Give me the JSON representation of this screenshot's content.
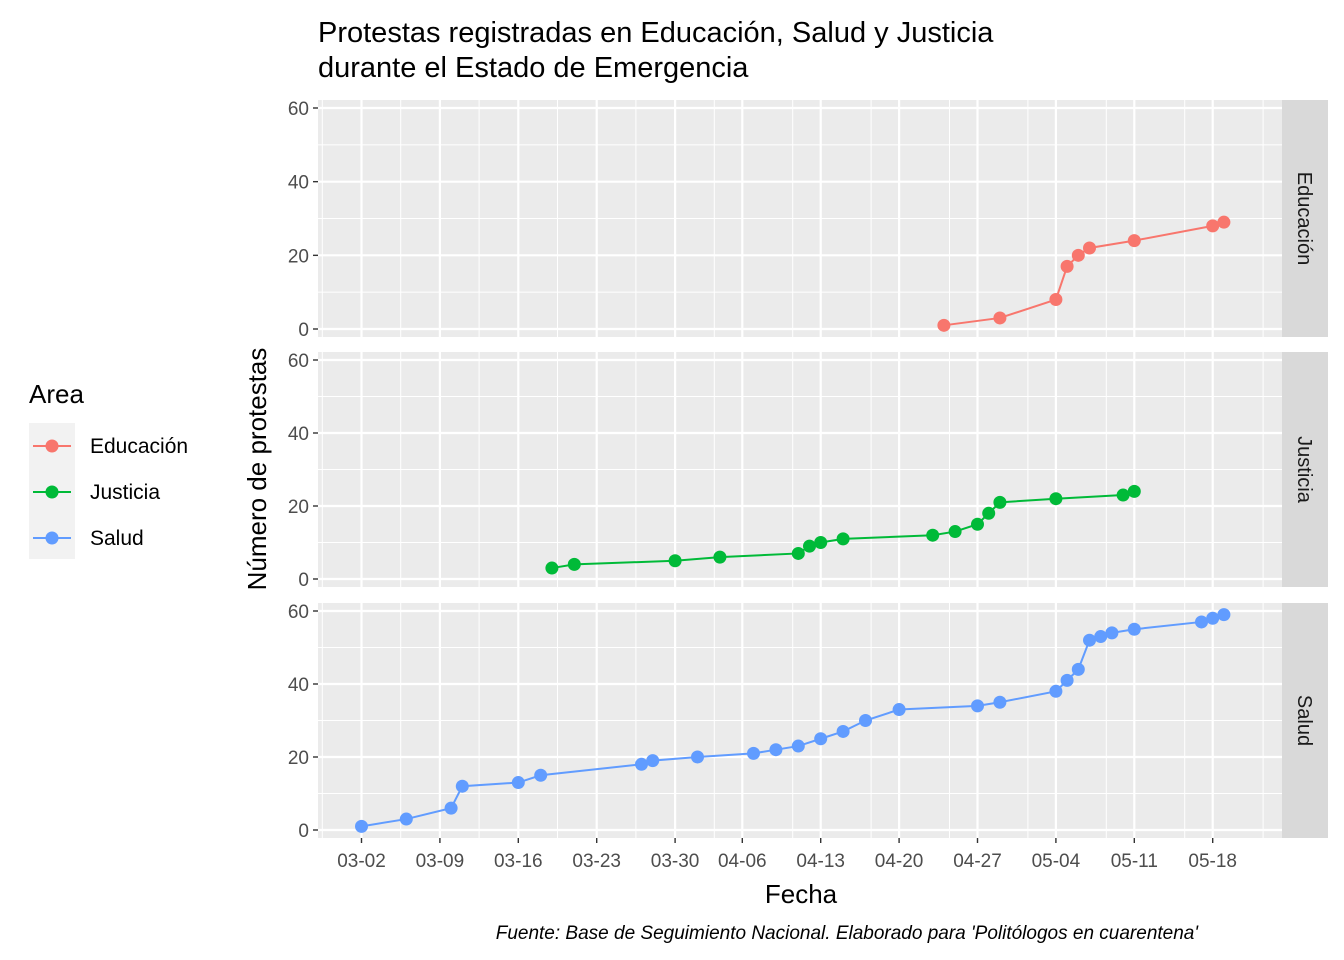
{
  "chart_data": {
    "type": "line",
    "title": "Protestas registradas en Educación, Salud y Justicia\ndurante el Estado de Emergencia",
    "xlabel": "Fecha",
    "ylabel": "Número de protestas",
    "caption": "Fuente: Base de Seguimiento Nacional. Elaborado para 'Politólogos en cuarentena'",
    "x_ticks": [
      "03-02",
      "03-09",
      "03-16",
      "03-23",
      "03-30",
      "04-06",
      "04-13",
      "04-20",
      "04-27",
      "05-04",
      "05-11",
      "05-18"
    ],
    "ylim": [
      0,
      60
    ],
    "y_ticks": [
      0,
      20,
      40,
      60
    ],
    "legend": {
      "title": "Area",
      "placement": "left",
      "entries": [
        "Educación",
        "Justicia",
        "Salud"
      ]
    },
    "grid": true,
    "facet": "rows",
    "series": [
      {
        "name": "Educación",
        "color": "#F8766D",
        "points": [
          {
            "x": "04-24",
            "y": 1
          },
          {
            "x": "04-29",
            "y": 3
          },
          {
            "x": "05-04",
            "y": 8
          },
          {
            "x": "05-05",
            "y": 17
          },
          {
            "x": "05-06",
            "y": 20
          },
          {
            "x": "05-07",
            "y": 22
          },
          {
            "x": "05-11",
            "y": 24
          },
          {
            "x": "05-18",
            "y": 28
          },
          {
            "x": "05-19",
            "y": 29
          }
        ]
      },
      {
        "name": "Justicia",
        "color": "#00BA38",
        "points": [
          {
            "x": "03-19",
            "y": 3
          },
          {
            "x": "03-21",
            "y": 4
          },
          {
            "x": "03-30",
            "y": 5
          },
          {
            "x": "04-04",
            "y": 6
          },
          {
            "x": "04-11",
            "y": 7
          },
          {
            "x": "04-12",
            "y": 9
          },
          {
            "x": "04-13",
            "y": 10
          },
          {
            "x": "04-15",
            "y": 11
          },
          {
            "x": "04-23",
            "y": 12
          },
          {
            "x": "04-25",
            "y": 13
          },
          {
            "x": "04-27",
            "y": 15
          },
          {
            "x": "04-28",
            "y": 18
          },
          {
            "x": "04-29",
            "y": 21
          },
          {
            "x": "05-04",
            "y": 22
          },
          {
            "x": "05-10",
            "y": 23
          },
          {
            "x": "05-11",
            "y": 24
          }
        ]
      },
      {
        "name": "Salud",
        "color": "#619CFF",
        "points": [
          {
            "x": "03-02",
            "y": 1
          },
          {
            "x": "03-06",
            "y": 3
          },
          {
            "x": "03-10",
            "y": 6
          },
          {
            "x": "03-11",
            "y": 12
          },
          {
            "x": "03-16",
            "y": 13
          },
          {
            "x": "03-18",
            "y": 15
          },
          {
            "x": "03-27",
            "y": 18
          },
          {
            "x": "03-28",
            "y": 19
          },
          {
            "x": "04-02",
            "y": 20
          },
          {
            "x": "04-07",
            "y": 21
          },
          {
            "x": "04-09",
            "y": 22
          },
          {
            "x": "04-11",
            "y": 23
          },
          {
            "x": "04-13",
            "y": 25
          },
          {
            "x": "04-15",
            "y": 27
          },
          {
            "x": "04-17",
            "y": 30
          },
          {
            "x": "04-20",
            "y": 33
          },
          {
            "x": "04-27",
            "y": 34
          },
          {
            "x": "04-29",
            "y": 35
          },
          {
            "x": "05-04",
            "y": 38
          },
          {
            "x": "05-05",
            "y": 41
          },
          {
            "x": "05-06",
            "y": 44
          },
          {
            "x": "05-07",
            "y": 52
          },
          {
            "x": "05-08",
            "y": 53
          },
          {
            "x": "05-09",
            "y": 54
          },
          {
            "x": "05-11",
            "y": 55
          },
          {
            "x": "05-17",
            "y": 57
          },
          {
            "x": "05-18",
            "y": 58
          },
          {
            "x": "05-19",
            "y": 59
          }
        ]
      }
    ]
  }
}
